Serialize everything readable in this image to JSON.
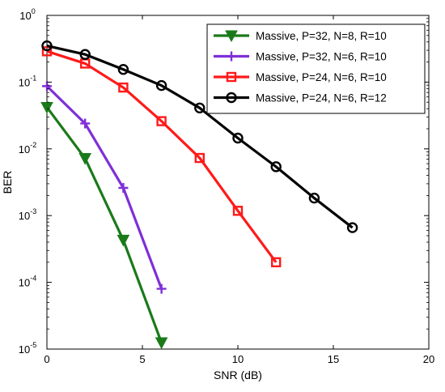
{
  "chart_data": {
    "type": "line",
    "xlabel": "SNR (dB)",
    "ylabel": "BER",
    "xlim": [
      0,
      20
    ],
    "ylim": [
      1e-05,
      1
    ],
    "y_scale": "log",
    "x_ticks": [
      0,
      5,
      10,
      15,
      20
    ],
    "x_tick_labels": [
      "0",
      "5",
      "10",
      "15",
      "20"
    ],
    "y_ticks": [
      {
        "value": 1e-05,
        "base": "10",
        "exp": "-5"
      },
      {
        "value": 0.0001,
        "base": "10",
        "exp": "-4"
      },
      {
        "value": 0.001,
        "base": "10",
        "exp": "-3"
      },
      {
        "value": 0.01,
        "base": "10",
        "exp": "-2"
      },
      {
        "value": 0.1,
        "base": "10",
        "exp": "-1"
      },
      {
        "value": 1,
        "base": "10",
        "exp": "0"
      }
    ],
    "grid": false,
    "legend_position": "top-right",
    "series": [
      {
        "name": "Massive, P=32, N=8, R=10",
        "color": "#1a7a1a",
        "marker": "triangle-down",
        "x": [
          0,
          2,
          4,
          6
        ],
        "y": [
          0.042,
          0.0072,
          0.00043,
          1.25e-05
        ]
      },
      {
        "name": "Massive, P=32, N=6, R=10",
        "color": "#7f2fd8",
        "marker": "plus",
        "x": [
          0,
          2,
          4,
          6
        ],
        "y": [
          0.087,
          0.024,
          0.0026,
          8e-05
        ]
      },
      {
        "name": "Massive, P=24, N=6, R=10",
        "color": "#ff1a1a",
        "marker": "square",
        "x": [
          0,
          2,
          4,
          6,
          8,
          10,
          12
        ],
        "y": [
          0.29,
          0.19,
          0.083,
          0.026,
          0.0073,
          0.00118,
          0.0002
        ]
      },
      {
        "name": "Massive, P=24, N=6, R=12",
        "color": "#000000",
        "marker": "circle",
        "x": [
          0,
          2,
          4,
          6,
          8,
          10,
          12,
          14,
          16
        ],
        "y": [
          0.35,
          0.26,
          0.155,
          0.089,
          0.041,
          0.0145,
          0.0054,
          0.00183,
          0.00066
        ]
      }
    ]
  }
}
